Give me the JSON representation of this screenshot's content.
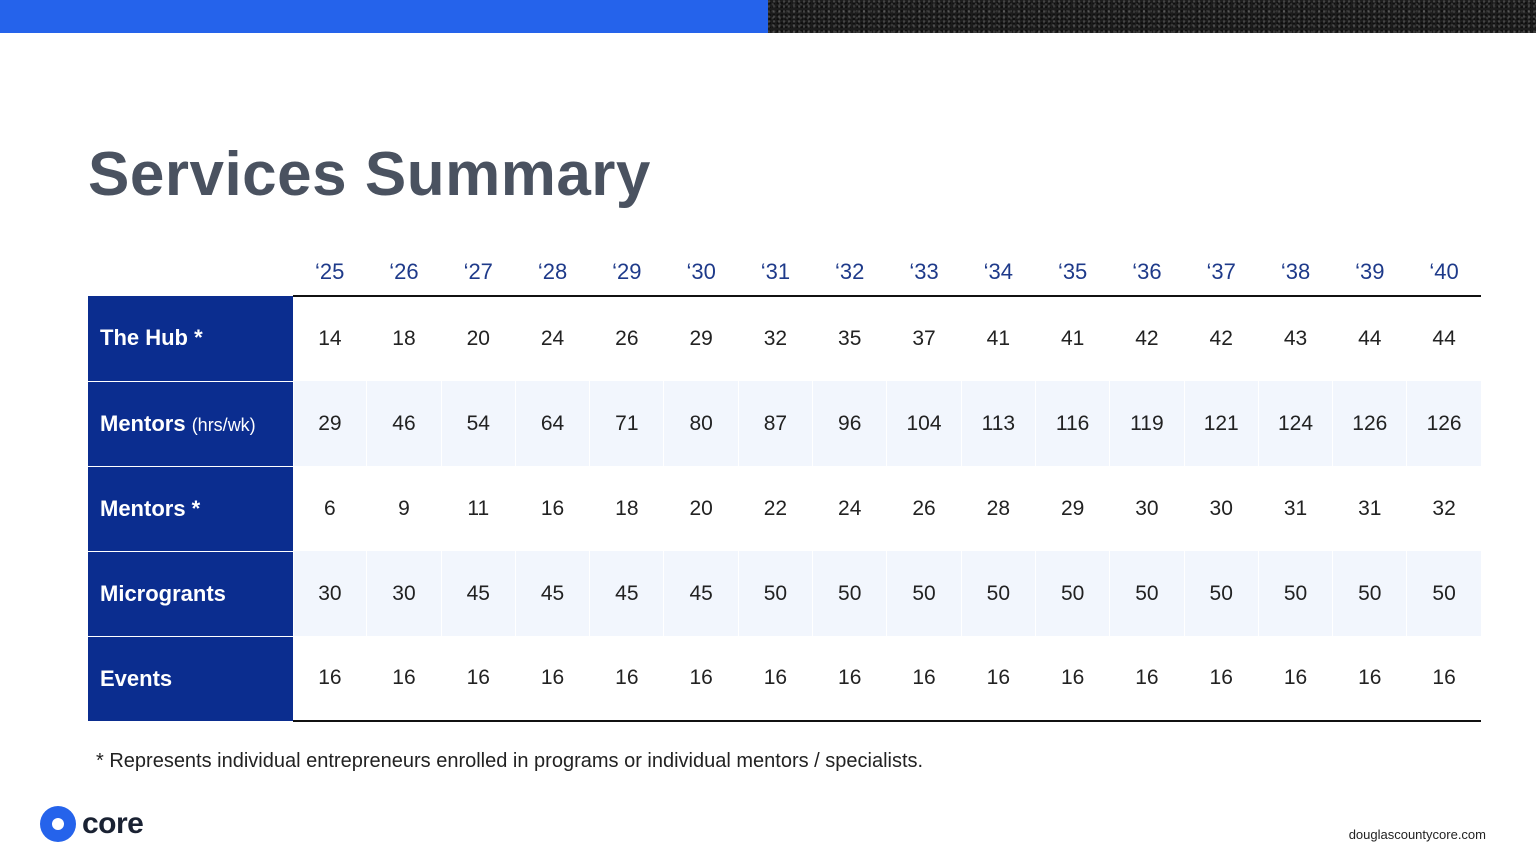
{
  "title": "Services Summary",
  "years": [
    "‘25",
    "‘26",
    "‘27",
    "‘28",
    "‘29",
    "‘30",
    "‘31",
    "‘32",
    "‘33",
    "‘34",
    "‘35",
    "‘36",
    "‘37",
    "‘38",
    "‘39",
    "‘40"
  ],
  "rows": [
    {
      "label": "The Hub *",
      "unit": "",
      "values": [
        14,
        18,
        20,
        24,
        26,
        29,
        32,
        35,
        37,
        41,
        41,
        42,
        42,
        43,
        44,
        44
      ]
    },
    {
      "label": "Mentors",
      "unit": "(hrs/wk)",
      "values": [
        29,
        46,
        54,
        64,
        71,
        80,
        87,
        96,
        104,
        113,
        116,
        119,
        121,
        124,
        126,
        126
      ]
    },
    {
      "label": "Mentors *",
      "unit": "",
      "values": [
        6,
        9,
        11,
        16,
        18,
        20,
        22,
        24,
        26,
        28,
        29,
        30,
        30,
        31,
        31,
        32
      ]
    },
    {
      "label": "Microgrants",
      "unit": "",
      "values": [
        30,
        30,
        45,
        45,
        45,
        45,
        50,
        50,
        50,
        50,
        50,
        50,
        50,
        50,
        50,
        50
      ]
    },
    {
      "label": "Events",
      "unit": "",
      "values": [
        16,
        16,
        16,
        16,
        16,
        16,
        16,
        16,
        16,
        16,
        16,
        16,
        16,
        16,
        16,
        16
      ]
    }
  ],
  "footnote": "* Represents individual entrepreneurs enrolled in programs or individual mentors / specialists.",
  "logo_text": "core",
  "website": "douglascountycore.com",
  "colors": {
    "accent_blue": "#2563eb",
    "row_header_navy": "#0b2d8f",
    "year_header": "#1e3a8a",
    "title_gray": "#4a5260",
    "alt_row": "#f2f6fd"
  }
}
